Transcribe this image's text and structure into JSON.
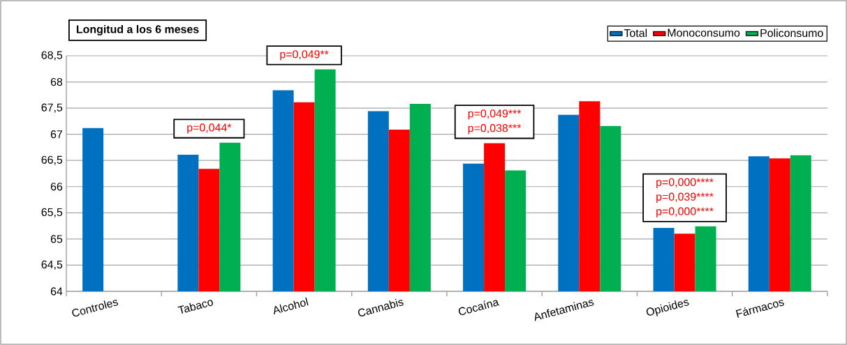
{
  "chart_data": {
    "type": "bar",
    "title": "Longitud a los 6 meses",
    "categories": [
      "Controles",
      "Tabaco",
      "Alcohol",
      "Cannabis",
      "Cocaína",
      "Anfetaminas",
      "Opioides",
      "Fármacos"
    ],
    "series": [
      {
        "name": "Total",
        "color": "#0070c0",
        "values": [
          67.12,
          66.61,
          67.84,
          67.44,
          66.44,
          67.37,
          65.21,
          66.58
        ]
      },
      {
        "name": "Monoconsumo",
        "color": "#ff0000",
        "values": [
          null,
          66.34,
          67.61,
          67.09,
          66.83,
          67.63,
          65.1,
          66.54
        ]
      },
      {
        "name": "Policonsumo",
        "color": "#00b050",
        "values": [
          null,
          66.84,
          68.24,
          67.58,
          66.31,
          67.16,
          65.24,
          66.6
        ]
      }
    ],
    "ylim": [
      64,
      68.5
    ],
    "yticks": [
      64,
      {
        "value": 64.5,
        "label": "64,5"
      },
      65,
      {
        "value": 65.5,
        "label": "65,5"
      },
      66,
      {
        "value": 66.5,
        "label": "66,5"
      },
      67,
      {
        "value": 67.5,
        "label": "67,5"
      },
      68,
      {
        "value": 68.5,
        "label": "68,5"
      }
    ],
    "grid": "y",
    "legend": "top right",
    "annotations": [
      "p=0,044*",
      "p=0,049**",
      "p=0,049***",
      "p=0,038***",
      "p=0,000****",
      "p=0,039****",
      "p=0,000****"
    ]
  }
}
